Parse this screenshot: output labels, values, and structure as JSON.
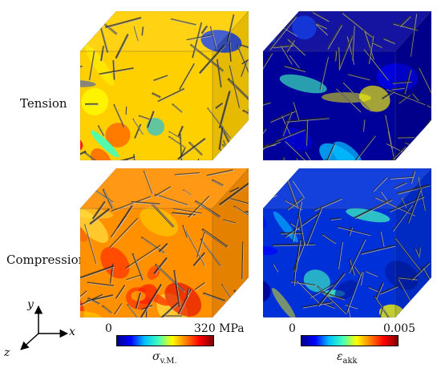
{
  "rows": [
    {
      "label": "Tension"
    },
    {
      "label": "Compression"
    }
  ],
  "columns": [
    {
      "colorbar": {
        "min_label": "0",
        "max_label": "320 MPa"
      },
      "quantity": {
        "symbol": "σ",
        "subscript": "v.M."
      }
    },
    {
      "colorbar": {
        "min_label": "0",
        "max_label": "0.005"
      },
      "quantity": {
        "symbol": "ε",
        "subscript": "akk"
      }
    }
  ],
  "axes": {
    "x": "x",
    "y": "y",
    "z": "z"
  },
  "colors": {
    "jet": [
      "#00008f",
      "#0000ff",
      "#00bfff",
      "#40ffbf",
      "#ffff00",
      "#ff8000",
      "#ff0000",
      "#800000"
    ]
  }
}
